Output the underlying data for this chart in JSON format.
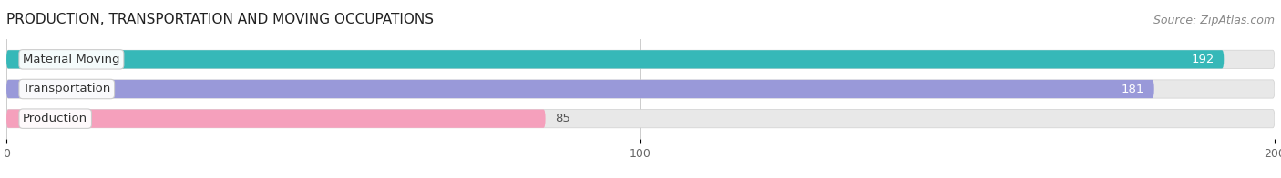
{
  "title": "PRODUCTION, TRANSPORTATION AND MOVING OCCUPATIONS",
  "source": "Source: ZipAtlas.com",
  "categories": [
    "Material Moving",
    "Transportation",
    "Production"
  ],
  "values": [
    192,
    181,
    85
  ],
  "bar_colors": [
    "#36b8b8",
    "#9999d9",
    "#f5a0bc"
  ],
  "xlim": [
    0,
    200
  ],
  "xticks": [
    0,
    100,
    200
  ],
  "bar_height": 0.62,
  "title_fontsize": 11,
  "source_fontsize": 9,
  "label_fontsize": 9.5,
  "tick_fontsize": 9,
  "value_fontsize": 9.5,
  "background_color": "#ffffff",
  "track_color": "#e8e8e8",
  "fig_width": 14.06,
  "fig_height": 1.96
}
